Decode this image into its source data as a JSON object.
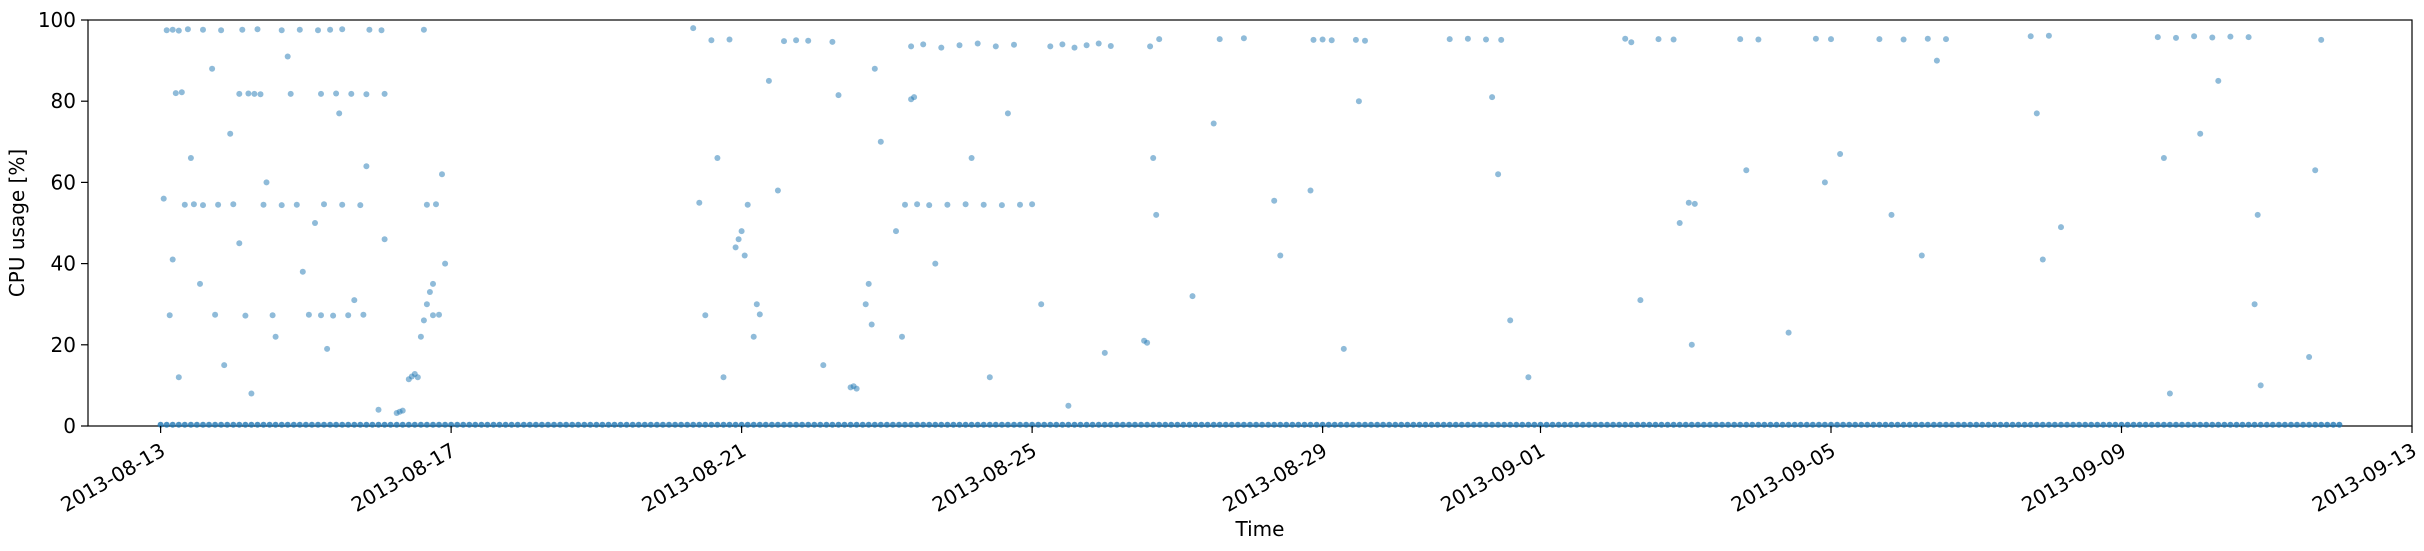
{
  "chart_data": {
    "type": "scatter",
    "xlabel": "Time",
    "ylabel": "CPU usage [%]",
    "ylim": [
      0,
      100
    ],
    "xlim": [
      "2013-08-12",
      "2013-09-13"
    ],
    "grid": false,
    "legend": "none",
    "color": "#1f77b4",
    "yticks": [
      0,
      20,
      40,
      60,
      80,
      100
    ],
    "xticks": [
      "2013-08-13",
      "2013-08-17",
      "2013-08-21",
      "2013-08-25",
      "2013-08-29",
      "2013-09-01",
      "2013-09-05",
      "2013-09-09",
      "2013-09-13"
    ],
    "points": [
      [
        "2013-08-13 02:00",
        97.5
      ],
      [
        "2013-08-13 04:00",
        97.6
      ],
      [
        "2013-08-13 06:00",
        97.4
      ],
      [
        "2013-08-13 09:00",
        97.7
      ],
      [
        "2013-08-13 14:00",
        97.6
      ],
      [
        "2013-08-13 20:00",
        97.5
      ],
      [
        "2013-08-14 03:00",
        97.6
      ],
      [
        "2013-08-14 08:00",
        97.7
      ],
      [
        "2013-08-14 16:00",
        97.5
      ],
      [
        "2013-08-14 22:00",
        97.6
      ],
      [
        "2013-08-15 04:00",
        97.5
      ],
      [
        "2013-08-15 08:00",
        97.6
      ],
      [
        "2013-08-15 12:00",
        97.7
      ],
      [
        "2013-08-15 21:00",
        97.6
      ],
      [
        "2013-08-16 01:00",
        97.5
      ],
      [
        "2013-08-16 15:00",
        97.6
      ],
      [
        "2013-08-13 05:00",
        82.0
      ],
      [
        "2013-08-13 07:00",
        82.2
      ],
      [
        "2013-08-14 02:00",
        81.8
      ],
      [
        "2013-08-14 05:00",
        81.9
      ],
      [
        "2013-08-14 07:00",
        81.8
      ],
      [
        "2013-08-14 09:00",
        81.7
      ],
      [
        "2013-08-14 19:00",
        81.8
      ],
      [
        "2013-08-15 05:00",
        81.8
      ],
      [
        "2013-08-15 10:00",
        81.9
      ],
      [
        "2013-08-15 15:00",
        81.8
      ],
      [
        "2013-08-15 20:00",
        81.7
      ],
      [
        "2013-08-16 02:00",
        81.8
      ],
      [
        "2013-08-13 08:00",
        54.5
      ],
      [
        "2013-08-13 11:00",
        54.6
      ],
      [
        "2013-08-13 14:00",
        54.4
      ],
      [
        "2013-08-13 19:00",
        54.5
      ],
      [
        "2013-08-14 00:00",
        54.6
      ],
      [
        "2013-08-14 10:00",
        54.5
      ],
      [
        "2013-08-14 16:00",
        54.4
      ],
      [
        "2013-08-14 21:00",
        54.5
      ],
      [
        "2013-08-15 06:00",
        54.6
      ],
      [
        "2013-08-15 12:00",
        54.5
      ],
      [
        "2013-08-15 18:00",
        54.4
      ],
      [
        "2013-08-16 16:00",
        54.5
      ],
      [
        "2013-08-16 19:00",
        54.6
      ],
      [
        "2013-08-13 03:00",
        27.3
      ],
      [
        "2013-08-13 18:00",
        27.4
      ],
      [
        "2013-08-14 04:00",
        27.2
      ],
      [
        "2013-08-14 13:00",
        27.3
      ],
      [
        "2013-08-15 01:00",
        27.4
      ],
      [
        "2013-08-15 05:00",
        27.3
      ],
      [
        "2013-08-15 09:00",
        27.2
      ],
      [
        "2013-08-15 14:00",
        27.3
      ],
      [
        "2013-08-15 19:00",
        27.4
      ],
      [
        "2013-08-16 18:00",
        27.3
      ],
      [
        "2013-08-16 20:00",
        27.4
      ],
      [
        "2013-08-13 01:00",
        56.0
      ],
      [
        "2013-08-13 04:00",
        41.0
      ],
      [
        "2013-08-13 06:00",
        12.0
      ],
      [
        "2013-08-13 10:00",
        66.0
      ],
      [
        "2013-08-13 13:00",
        35.0
      ],
      [
        "2013-08-13 17:00",
        88.0
      ],
      [
        "2013-08-13 21:00",
        15.0
      ],
      [
        "2013-08-13 23:00",
        72.0
      ],
      [
        "2013-08-14 02:00",
        45.0
      ],
      [
        "2013-08-14 06:00",
        8.0
      ],
      [
        "2013-08-14 11:00",
        60.0
      ],
      [
        "2013-08-14 14:00",
        22.0
      ],
      [
        "2013-08-14 18:00",
        91.0
      ],
      [
        "2013-08-14 23:00",
        38.0
      ],
      [
        "2013-08-15 03:00",
        50.0
      ],
      [
        "2013-08-15 07:00",
        19.0
      ],
      [
        "2013-08-15 11:00",
        77.0
      ],
      [
        "2013-08-15 16:00",
        31.0
      ],
      [
        "2013-08-15 20:00",
        64.0
      ],
      [
        "2013-08-16 00:00",
        4.0
      ],
      [
        "2013-08-16 02:00",
        46.0
      ],
      [
        "2013-08-16 06:00",
        3.2
      ],
      [
        "2013-08-16 07:00",
        3.5
      ],
      [
        "2013-08-16 08:00",
        3.8
      ],
      [
        "2013-08-16 10:00",
        11.5
      ],
      [
        "2013-08-16 11:00",
        12.2
      ],
      [
        "2013-08-16 12:00",
        12.8
      ],
      [
        "2013-08-16 13:00",
        12.0
      ],
      [
        "2013-08-16 14:00",
        22.0
      ],
      [
        "2013-08-16 15:00",
        26.0
      ],
      [
        "2013-08-16 16:00",
        30.0
      ],
      [
        "2013-08-16 17:00",
        33.0
      ],
      [
        "2013-08-16 18:00",
        35.0
      ],
      [
        "2013-08-16 21:00",
        62.0
      ],
      [
        "2013-08-16 22:00",
        40.0
      ],
      [
        "2013-08-20 08:00",
        98.0
      ],
      [
        "2013-08-20 14:00",
        95.0
      ],
      [
        "2013-08-20 20:00",
        95.2
      ],
      [
        "2013-08-21 14:00",
        94.8
      ],
      [
        "2013-08-21 18:00",
        95.0
      ],
      [
        "2013-08-21 22:00",
        94.9
      ],
      [
        "2013-08-22 06:00",
        94.6
      ],
      [
        "2013-08-22 08:00",
        81.5
      ],
      [
        "2013-08-20 10:00",
        55.0
      ],
      [
        "2013-08-21 02:00",
        54.5
      ],
      [
        "2013-08-20 12:00",
        27.3
      ],
      [
        "2013-08-21 06:00",
        27.5
      ],
      [
        "2013-08-20 22:00",
        44.0
      ],
      [
        "2013-08-20 23:00",
        46.0
      ],
      [
        "2013-08-21 00:00",
        48.0
      ],
      [
        "2013-08-21 01:00",
        42.0
      ],
      [
        "2013-08-21 04:00",
        22.0
      ],
      [
        "2013-08-21 05:00",
        30.0
      ],
      [
        "2013-08-20 16:00",
        66.0
      ],
      [
        "2013-08-20 18:00",
        12.0
      ],
      [
        "2013-08-21 09:00",
        85.0
      ],
      [
        "2013-08-21 12:00",
        58.0
      ],
      [
        "2013-08-22 03:00",
        15.0
      ],
      [
        "2013-08-22 12:00",
        9.5
      ],
      [
        "2013-08-22 13:00",
        9.8
      ],
      [
        "2013-08-22 14:00",
        9.2
      ],
      [
        "2013-08-22 17:00",
        30.0
      ],
      [
        "2013-08-22 18:00",
        35.0
      ],
      [
        "2013-08-22 19:00",
        25.0
      ],
      [
        "2013-08-22 20:00",
        88.0
      ],
      [
        "2013-08-22 22:00",
        70.0
      ],
      [
        "2013-08-23 03:00",
        48.0
      ],
      [
        "2013-08-23 06:00",
        54.5
      ],
      [
        "2013-08-23 10:00",
        54.6
      ],
      [
        "2013-08-23 14:00",
        54.4
      ],
      [
        "2013-08-23 20:00",
        54.5
      ],
      [
        "2013-08-24 02:00",
        54.6
      ],
      [
        "2013-08-24 08:00",
        54.5
      ],
      [
        "2013-08-24 14:00",
        54.4
      ],
      [
        "2013-08-24 20:00",
        54.5
      ],
      [
        "2013-08-25 00:00",
        54.6
      ],
      [
        "2013-08-23 08:00",
        93.5
      ],
      [
        "2013-08-23 12:00",
        94.0
      ],
      [
        "2013-08-23 18:00",
        93.2
      ],
      [
        "2013-08-24 00:00",
        93.8
      ],
      [
        "2013-08-24 06:00",
        94.2
      ],
      [
        "2013-08-24 12:00",
        93.5
      ],
      [
        "2013-08-24 18:00",
        93.9
      ],
      [
        "2013-08-25 06:00",
        93.5
      ],
      [
        "2013-08-25 10:00",
        94.0
      ],
      [
        "2013-08-25 14:00",
        93.2
      ],
      [
        "2013-08-25 18:00",
        93.8
      ],
      [
        "2013-08-25 22:00",
        94.2
      ],
      [
        "2013-08-26 02:00",
        93.6
      ],
      [
        "2013-08-23 08:00",
        80.5
      ],
      [
        "2013-08-23 09:00",
        81.0
      ],
      [
        "2013-08-23 05:00",
        22.0
      ],
      [
        "2013-08-23 16:00",
        40.0
      ],
      [
        "2013-08-24 04:00",
        66.0
      ],
      [
        "2013-08-24 10:00",
        12.0
      ],
      [
        "2013-08-24 16:00",
        77.0
      ],
      [
        "2013-08-25 03:00",
        30.0
      ],
      [
        "2013-08-25 12:00",
        5.0
      ],
      [
        "2013-08-26 00:00",
        18.0
      ],
      [
        "2013-08-26 15:00",
        93.5
      ],
      [
        "2013-08-26 18:00",
        95.3
      ],
      [
        "2013-08-26 14:00",
        20.5
      ],
      [
        "2013-08-26 13:00",
        21.0
      ],
      [
        "2013-08-26 16:00",
        66.0
      ],
      [
        "2013-08-26 17:00",
        52.0
      ],
      [
        "2013-08-27 05:00",
        32.0
      ],
      [
        "2013-08-27 12:00",
        74.5
      ],
      [
        "2013-08-27 14:00",
        95.3
      ],
      [
        "2013-08-27 22:00",
        95.5
      ],
      [
        "2013-08-28 08:00",
        55.5
      ],
      [
        "2013-08-28 10:00",
        42.0
      ],
      [
        "2013-08-28 21:00",
        95.1
      ],
      [
        "2013-08-29 00:00",
        95.2
      ],
      [
        "2013-08-29 03:00",
        95.0
      ],
      [
        "2013-08-29 11:00",
        95.1
      ],
      [
        "2013-08-29 14:00",
        94.9
      ],
      [
        "2013-08-28 20:00",
        58.0
      ],
      [
        "2013-08-29 07:00",
        19.0
      ],
      [
        "2013-08-29 12:00",
        80.0
      ],
      [
        "2013-08-30 18:00",
        95.3
      ],
      [
        "2013-08-31 00:00",
        95.4
      ],
      [
        "2013-08-31 06:00",
        95.2
      ],
      [
        "2013-08-31 11:00",
        95.1
      ],
      [
        "2013-08-31 08:00",
        81.0
      ],
      [
        "2013-08-31 10:00",
        62.0
      ],
      [
        "2013-08-31 14:00",
        26.0
      ],
      [
        "2013-08-31 20:00",
        12.0
      ],
      [
        "2013-09-02 04:00",
        95.4
      ],
      [
        "2013-09-02 06:00",
        94.5
      ],
      [
        "2013-09-02 09:00",
        31.0
      ],
      [
        "2013-09-02 15:00",
        95.3
      ],
      [
        "2013-09-02 20:00",
        95.2
      ],
      [
        "2013-09-03 01:00",
        55.0
      ],
      [
        "2013-09-03 03:00",
        54.7
      ],
      [
        "2013-09-02 22:00",
        50.0
      ],
      [
        "2013-09-03 02:00",
        20.0
      ],
      [
        "2013-09-03 18:00",
        95.3
      ],
      [
        "2013-09-04 00:00",
        95.2
      ],
      [
        "2013-09-03 20:00",
        63.0
      ],
      [
        "2013-09-04 10:00",
        23.0
      ],
      [
        "2013-09-04 19:00",
        95.4
      ],
      [
        "2013-09-05 00:00",
        95.3
      ],
      [
        "2013-09-04 22:00",
        60.0
      ],
      [
        "2013-09-05 03:00",
        67.0
      ],
      [
        "2013-09-05 16:00",
        95.3
      ],
      [
        "2013-09-06 00:00",
        95.2
      ],
      [
        "2013-09-06 08:00",
        95.4
      ],
      [
        "2013-09-06 14:00",
        95.3
      ],
      [
        "2013-09-05 20:00",
        52.0
      ],
      [
        "2013-09-06 06:00",
        42.0
      ],
      [
        "2013-09-06 11:00",
        90.0
      ],
      [
        "2013-09-07 18:00",
        96.0
      ],
      [
        "2013-09-08 00:00",
        96.1
      ],
      [
        "2013-09-07 20:00",
        77.0
      ],
      [
        "2013-09-08 04:00",
        49.0
      ],
      [
        "2013-09-07 22:00",
        41.0
      ],
      [
        "2013-09-09 12:00",
        95.8
      ],
      [
        "2013-09-09 18:00",
        95.6
      ],
      [
        "2013-09-10 00:00",
        96.0
      ],
      [
        "2013-09-10 06:00",
        95.7
      ],
      [
        "2013-09-10 12:00",
        95.9
      ],
      [
        "2013-09-10 18:00",
        95.8
      ],
      [
        "2013-09-09 14:00",
        66.0
      ],
      [
        "2013-09-09 16:00",
        8.0
      ],
      [
        "2013-09-10 02:00",
        72.0
      ],
      [
        "2013-09-10 08:00",
        85.0
      ],
      [
        "2013-09-10 20:00",
        30.0
      ],
      [
        "2013-09-10 22:00",
        10.0
      ],
      [
        "2013-09-10 21:00",
        52.0
      ],
      [
        "2013-09-11 18:00",
        95.1
      ],
      [
        "2013-09-11 16:00",
        63.0
      ],
      [
        "2013-09-11 14:00",
        17.0
      ]
    ],
    "baseline_segments": [
      [
        "2013-08-13 00:00",
        "2013-09-12 00:00",
        0.3
      ]
    ]
  }
}
